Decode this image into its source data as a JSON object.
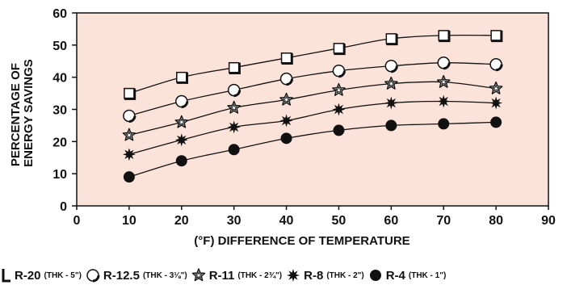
{
  "chart_data": {
    "type": "line",
    "title": "",
    "xlabel": "(°F) DIFFERENCE OF TEMPERATURE",
    "ylabel": "PERCENTAGE OF ENERGY SAVINGS",
    "ylabel_lines": [
      "PERCENTAGE OF",
      "ENERGY SAVINGS"
    ],
    "xlim": [
      0,
      90
    ],
    "ylim": [
      0,
      60
    ],
    "xticks": [
      "0",
      "10",
      "20",
      "30",
      "40",
      "50",
      "60",
      "70",
      "80",
      "90"
    ],
    "yticks": [
      "0",
      "10",
      "20",
      "30",
      "40",
      "50",
      "60"
    ],
    "grid": false,
    "plot_background": "#fbe3da",
    "legend_position": "bottom",
    "x": [
      10,
      20,
      30,
      40,
      50,
      60,
      70,
      80
    ],
    "series": [
      {
        "name": "R-20",
        "thickness": "(THK - 5\")",
        "marker": "square",
        "values": [
          35,
          40,
          43,
          46,
          49,
          52,
          53,
          53
        ]
      },
      {
        "name": "R-12.5",
        "thickness": "(THK - 3⅛\")",
        "marker": "circle-open",
        "values": [
          28,
          32.5,
          36,
          39.5,
          42,
          43.5,
          44.5,
          44
        ]
      },
      {
        "name": "R-11",
        "thickness": "(THK - 2¾\")",
        "marker": "star-open",
        "values": [
          22,
          26,
          30.5,
          33,
          36,
          38,
          38.5,
          36.5
        ]
      },
      {
        "name": "R-8",
        "thickness": "(THK - 2\")",
        "marker": "starburst",
        "values": [
          16,
          20.5,
          24.5,
          26.5,
          30,
          32,
          32.5,
          32
        ]
      },
      {
        "name": "R-4",
        "thickness": "(THK - 1\")",
        "marker": "circle-filled",
        "values": [
          9,
          14,
          17.5,
          21,
          23.5,
          25,
          25.5,
          26
        ]
      }
    ]
  }
}
